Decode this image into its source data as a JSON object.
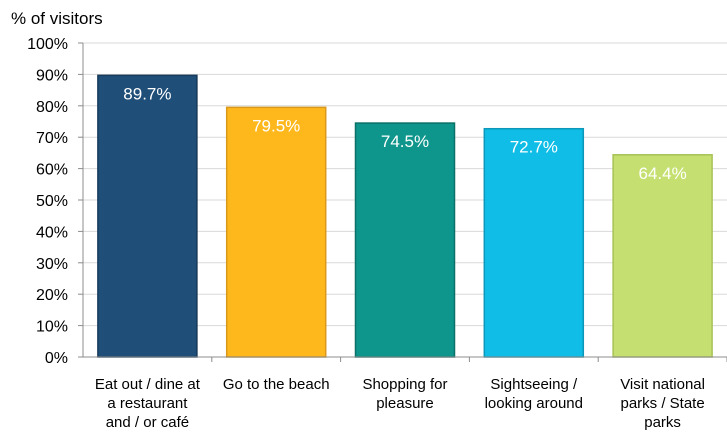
{
  "chart_data": {
    "type": "bar",
    "title": "",
    "xlabel": "",
    "ylabel": "% of visitors",
    "ylim": [
      0,
      100
    ],
    "yticks": [
      0,
      10,
      20,
      30,
      40,
      50,
      60,
      70,
      80,
      90,
      100
    ],
    "ytick_suffix": "%",
    "grid": true,
    "categories": [
      [
        "Eat out / dine at",
        "a restaurant",
        "and / or café"
      ],
      [
        "Go to the beach"
      ],
      [
        "Shopping for",
        "pleasure"
      ],
      [
        "Sightseeing /",
        "looking around"
      ],
      [
        "Visit national",
        "parks / State",
        "parks"
      ]
    ],
    "values": [
      89.7,
      79.5,
      74.5,
      72.7,
      64.4
    ],
    "data_labels": [
      "89.7%",
      "79.5%",
      "74.5%",
      "72.7%",
      "64.4%"
    ],
    "colors": [
      "#1f4e79",
      "#ffb81c",
      "#0f968c",
      "#0fbde6",
      "#c5e070"
    ],
    "edge_colors": [
      "#173a5a",
      "#d9981a",
      "#0b7068",
      "#0b98ba",
      "#a7c257"
    ]
  }
}
